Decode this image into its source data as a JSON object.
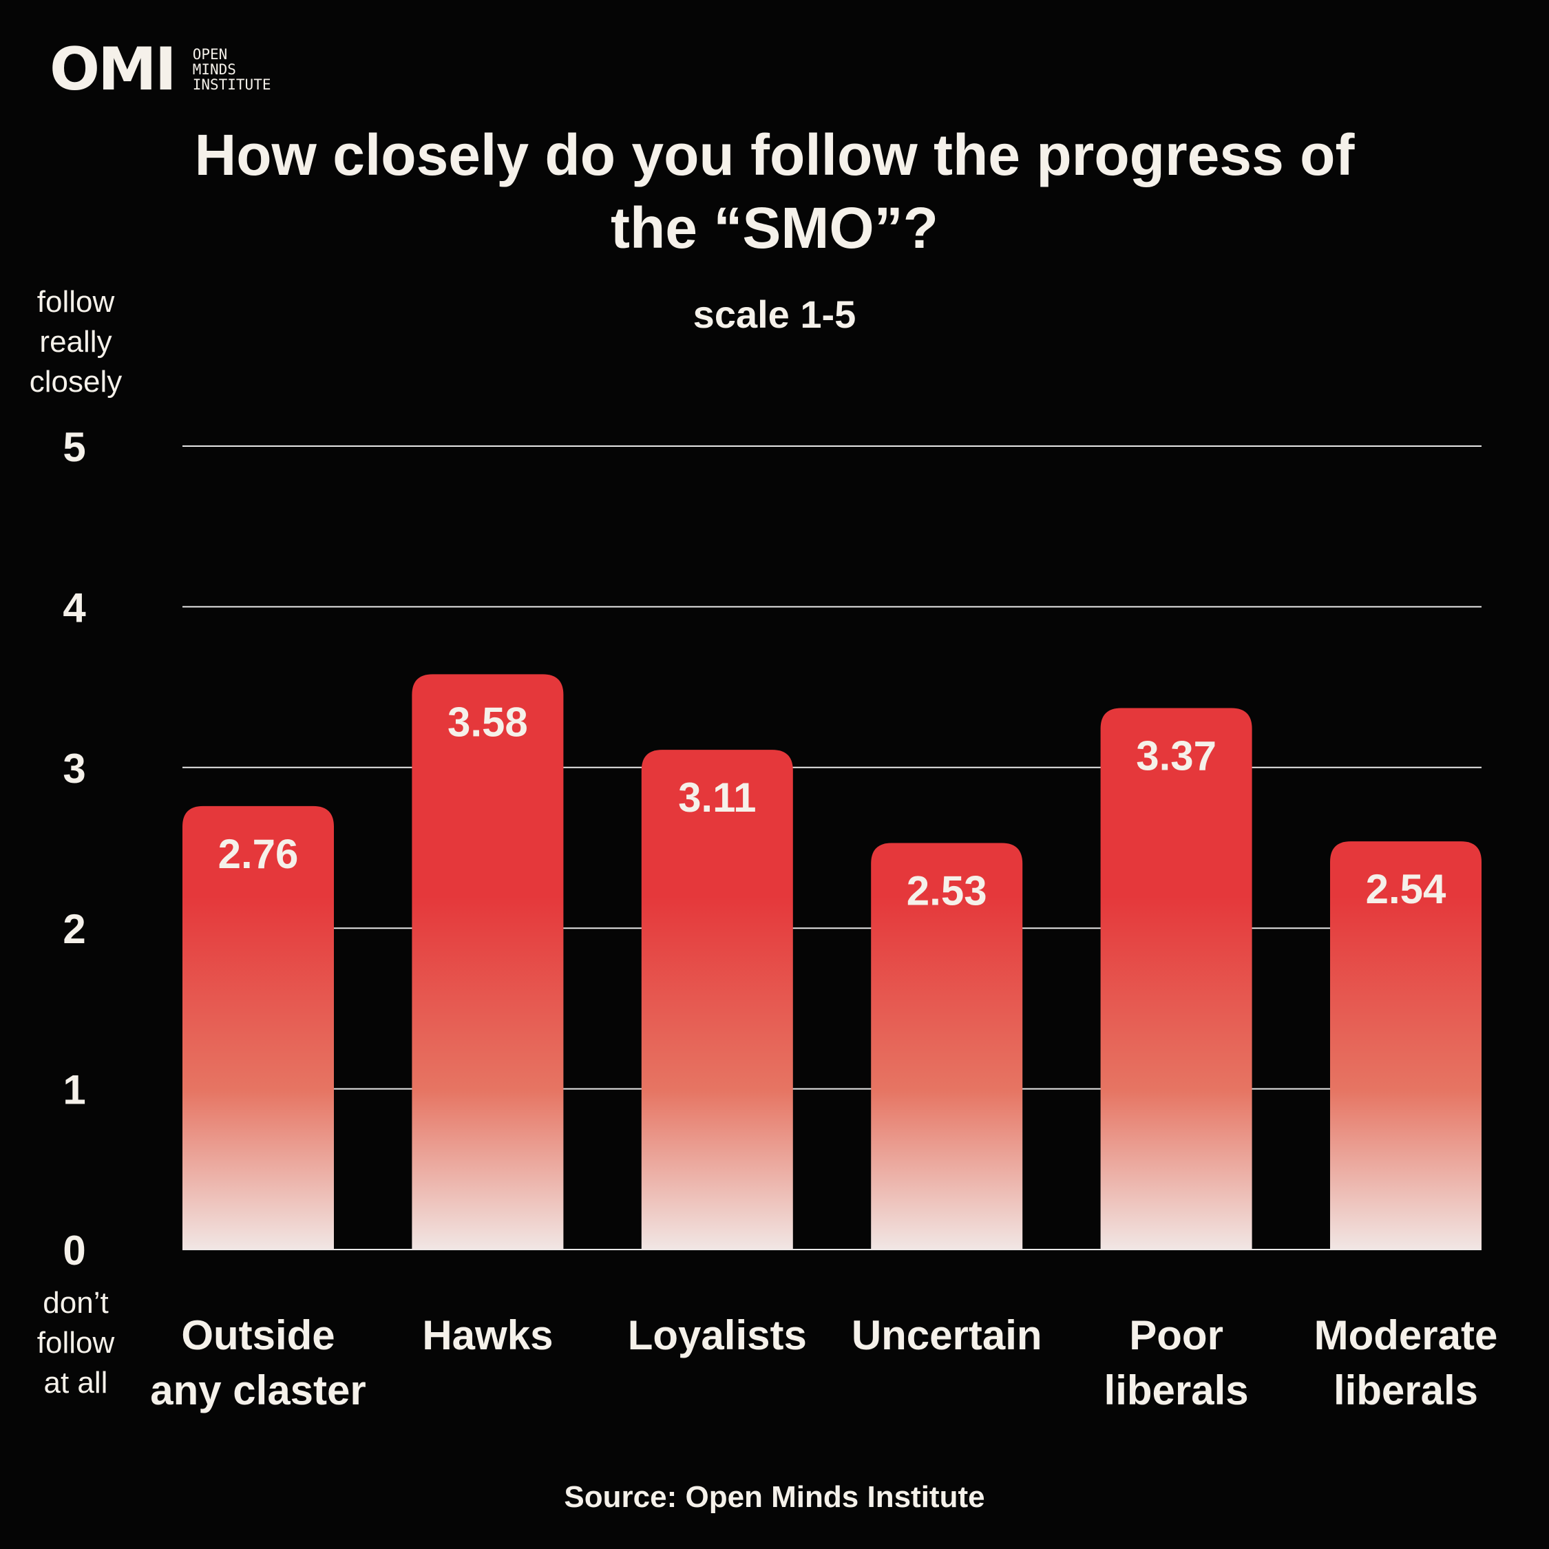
{
  "logo": {
    "mark": "OMI",
    "text_lines": [
      "OPEN",
      "MINDS",
      "INSTITUTE"
    ]
  },
  "title_lines": [
    "How closely do you follow the progress of",
    "the “SMO”?"
  ],
  "subtitle": "scale 1-5",
  "y_top_label": [
    "follow",
    "really",
    "closely"
  ],
  "y_bottom_label": [
    "don’t",
    "follow",
    "at all"
  ],
  "source": "Source: Open Minds Institute",
  "colors": {
    "background": "#050505",
    "bar_top": "#e5383b",
    "bar_bottom": "#f1e6e4",
    "text": "#f5f1ea",
    "grid": "#e8e8e8"
  },
  "chart_data": {
    "type": "bar",
    "categories": [
      [
        "Outside",
        "any claster"
      ],
      [
        "Hawks"
      ],
      [
        "Loyalists"
      ],
      [
        "Uncertain"
      ],
      [
        "Poor",
        "liberals"
      ],
      [
        "Moderate",
        "liberals"
      ]
    ],
    "values": [
      2.76,
      3.58,
      3.11,
      2.53,
      3.37,
      2.54
    ],
    "value_labels": [
      "2.76",
      "3.58",
      "3.11",
      "2.53",
      "3.37",
      "2.54"
    ],
    "yticks": [
      0,
      1,
      2,
      3,
      4,
      5
    ],
    "ylim": [
      0,
      5
    ],
    "grid": true
  }
}
